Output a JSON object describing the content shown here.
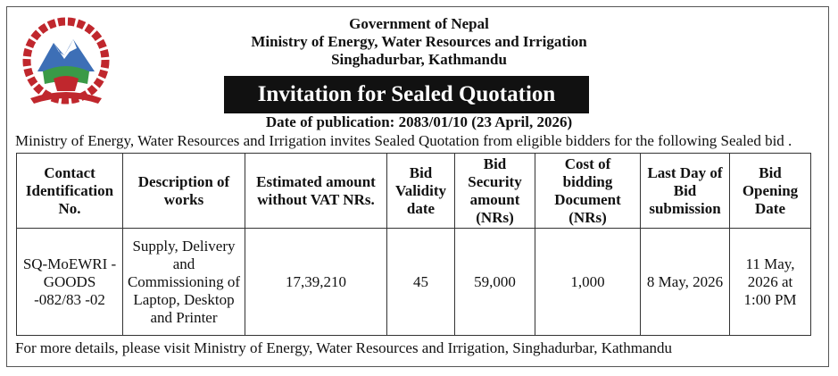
{
  "header": {
    "line1": "Government of Nepal",
    "line2": "Ministry of Energy, Water Resources and Irrigation",
    "line3": "Singhadurbar, Kathmandu"
  },
  "title": "Invitation for Sealed Quotation",
  "publication_date": "Date of publication: 2083/01/10 (23 April, 2026)",
  "intro": "Ministry of Energy, Water Resources and Irrigation invites Sealed Quotation from eligible bidders for the following Sealed bid .",
  "table": {
    "headers": [
      "Contact Identification No.",
      "Description of works",
      "Estimated amount without VAT NRs.",
      "Bid Validity date",
      "Bid Security amount (NRs)",
      "Cost of bidding Document (NRs)",
      "Last Day of Bid submission",
      "Bid Opening Date"
    ],
    "rows": [
      [
        "SQ-MoEWRI -GOODS -082/83 -02",
        "Supply, Delivery and Commissioning of Laptop, Desktop and Printer",
        "17,39,210",
        "45",
        "59,000",
        "1,000",
        "8 May, 2026",
        "11 May, 2026 at 1:00 PM"
      ]
    ]
  },
  "footer": "For more details, please visit Ministry of Energy, Water Resources and Irrigation, Singhadurbar, Kathmandu"
}
